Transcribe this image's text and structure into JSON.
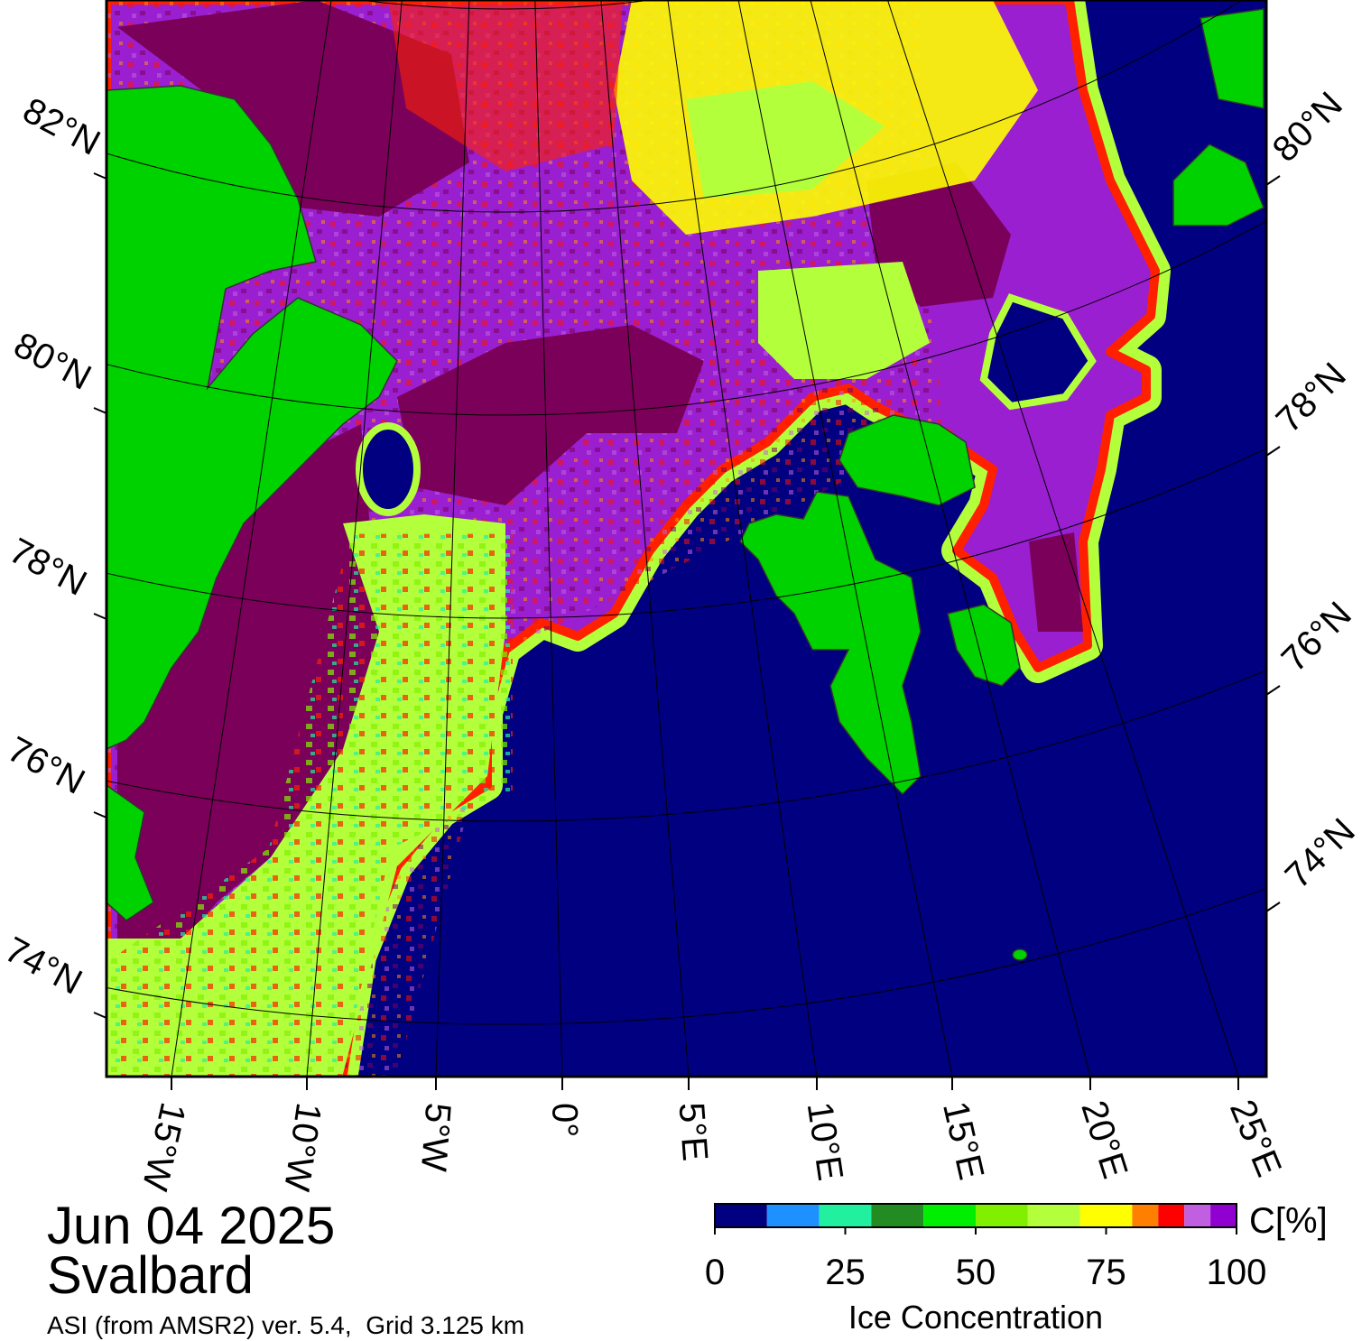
{
  "map": {
    "lat_labels_left": [
      "82°N",
      "80°N",
      "78°N",
      "76°N",
      "74°N"
    ],
    "lat_labels_right": [
      "80°N",
      "78°N",
      "76°N",
      "74°N"
    ],
    "lon_labels": [
      "15°W",
      "10°W",
      "5°W",
      "0°",
      "5°E",
      "10°E",
      "15°E",
      "20°E",
      "25°E"
    ]
  },
  "title": {
    "date": "Jun 04 2025",
    "region": "Svalbard",
    "source": "ASI (from AMSR2) ver. 5.4,  Grid 3.125 km"
  },
  "colorbar": {
    "bounds": [
      0,
      10,
      20,
      30,
      40,
      50,
      60,
      70,
      80,
      85,
      90,
      95,
      100
    ],
    "colors": [
      "#000080",
      "#1e90ff",
      "#20f0a0",
      "#228b22",
      "#00ee00",
      "#80f000",
      "#b4ff3c",
      "#ffff00",
      "#ff8000",
      "#ff0000",
      "#c060e0",
      "#9000d0"
    ],
    "ticks": [
      0,
      25,
      50,
      75,
      100
    ],
    "label": "Ice Concentration",
    "unit": "C[%]"
  }
}
